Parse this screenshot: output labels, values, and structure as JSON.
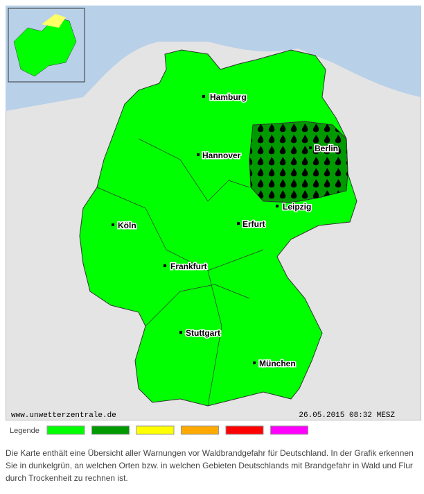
{
  "map": {
    "cities": [
      "Hamburg",
      "Hannover",
      "Berlin",
      "Leipzig",
      "Köln",
      "Erfurt",
      "Frankfurt",
      "Stuttgart",
      "München"
    ],
    "watermark": "www.unwetterzentrale.de",
    "timestamp": "26.05.2015 08:32 MESZ"
  },
  "legend": {
    "label": "Legende",
    "colors": [
      "#00ff00",
      "#009900",
      "#ffff00",
      "#ffaa00",
      "#ff0000",
      "#ff00ff"
    ]
  },
  "description": "Die Karte enthält eine Übersicht aller Warnungen vor Waldbrandgefahr für Deutschland. In der Grafik erkennen Sie in dunkelgrün, an welchen Orten bzw. in welchen Gebieten Deutschlands mit Brandgefahr in Wald und Flur durch Trockenheit zu rechnen ist."
}
